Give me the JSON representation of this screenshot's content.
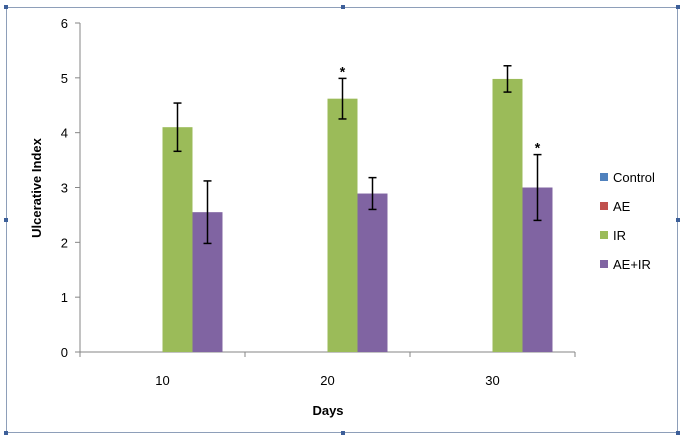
{
  "chart_data": {
    "type": "bar",
    "title": "",
    "xlabel": "Days",
    "ylabel": "Ulcerative Index",
    "categories": [
      "10",
      "20",
      "30"
    ],
    "ylim": [
      0,
      6
    ],
    "yticks": [
      "0",
      "1",
      "2",
      "3",
      "4",
      "5",
      "6"
    ],
    "legend_position": "right",
    "series": [
      {
        "name": "Control",
        "color": "#4f81bd",
        "values": [
          0,
          0,
          0
        ],
        "errors": [
          0,
          0,
          0
        ],
        "annotations": [
          "",
          "",
          ""
        ]
      },
      {
        "name": "AE",
        "color": "#c0504d",
        "values": [
          0,
          0,
          0
        ],
        "errors": [
          0,
          0,
          0
        ],
        "annotations": [
          "",
          "",
          ""
        ]
      },
      {
        "name": "IR",
        "color": "#9bbb59",
        "values": [
          4.1,
          4.62,
          4.98
        ],
        "errors": [
          0.44,
          0.37,
          0.24
        ],
        "annotations": [
          "",
          "*",
          ""
        ]
      },
      {
        "name": "AE+IR",
        "color": "#8064a2",
        "values": [
          2.55,
          2.89,
          3.0
        ],
        "errors": [
          0.57,
          0.29,
          0.6
        ],
        "annotations": [
          "",
          "",
          "*"
        ]
      }
    ]
  }
}
